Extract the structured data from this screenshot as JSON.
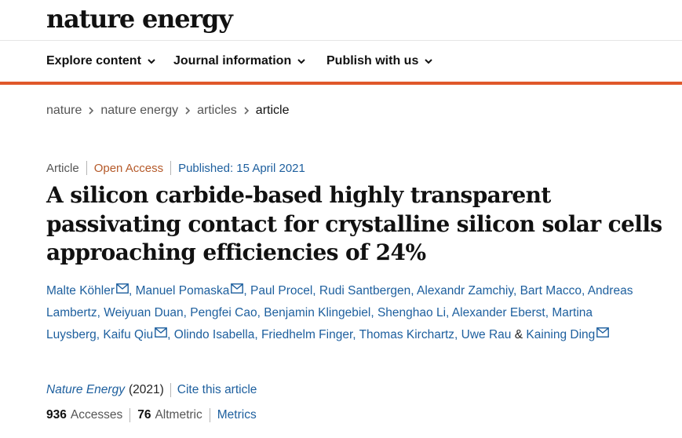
{
  "header": {
    "logo": "nature energy"
  },
  "nav": {
    "items": [
      {
        "label": "Explore content"
      },
      {
        "label": "Journal information"
      },
      {
        "label": "Publish with us"
      }
    ],
    "accent_color": "#e0582a"
  },
  "breadcrumb": [
    "nature",
    "nature energy",
    "articles",
    "article"
  ],
  "article": {
    "type": "Article",
    "access": "Open Access",
    "published": "Published: 15 April 2021",
    "title": "A silicon carbide-based highly transparent passivating contact for crystalline silicon solar cells approaching efficiencies of 24%",
    "authors": [
      {
        "name": "Malte Köhler",
        "mail": true
      },
      {
        "name": "Manuel Pomaska",
        "mail": true
      },
      {
        "name": "Paul Procel"
      },
      {
        "name": "Rudi Santbergen"
      },
      {
        "name": "Alexandr Zamchiy"
      },
      {
        "name": "Bart Macco"
      },
      {
        "name": "Andreas Lambertz"
      },
      {
        "name": "Weiyuan Duan"
      },
      {
        "name": "Pengfei Cao"
      },
      {
        "name": "Benjamin Klingebiel"
      },
      {
        "name": "Shenghao Li"
      },
      {
        "name": "Alexander Eberst"
      },
      {
        "name": "Martina Luysberg"
      },
      {
        "name": "Kaifu Qiu",
        "mail": true
      },
      {
        "name": "Olindo Isabella"
      },
      {
        "name": "Friedhelm Finger"
      },
      {
        "name": "Thomas Kirchartz"
      },
      {
        "name": "Uwe Rau"
      },
      {
        "name": "Kaining Ding",
        "mail": true
      }
    ],
    "author_separator": ", ",
    "author_last_joiner": " & ",
    "journal": "Nature Energy",
    "year": "(2021)",
    "cite_label": "Cite this article",
    "accesses_count": "936",
    "accesses_label": "Accesses",
    "altmetric_count": "76",
    "altmetric_label": "Altmetric",
    "metrics_label": "Metrics"
  },
  "icons": {
    "nav_chevron": "chevron-down-icon",
    "breadcrumb_sep": "chevron-right-icon",
    "author_mail": "mail-icon"
  },
  "colors": {
    "link": "#1d5f9e",
    "open_access": "#b55a2a"
  }
}
